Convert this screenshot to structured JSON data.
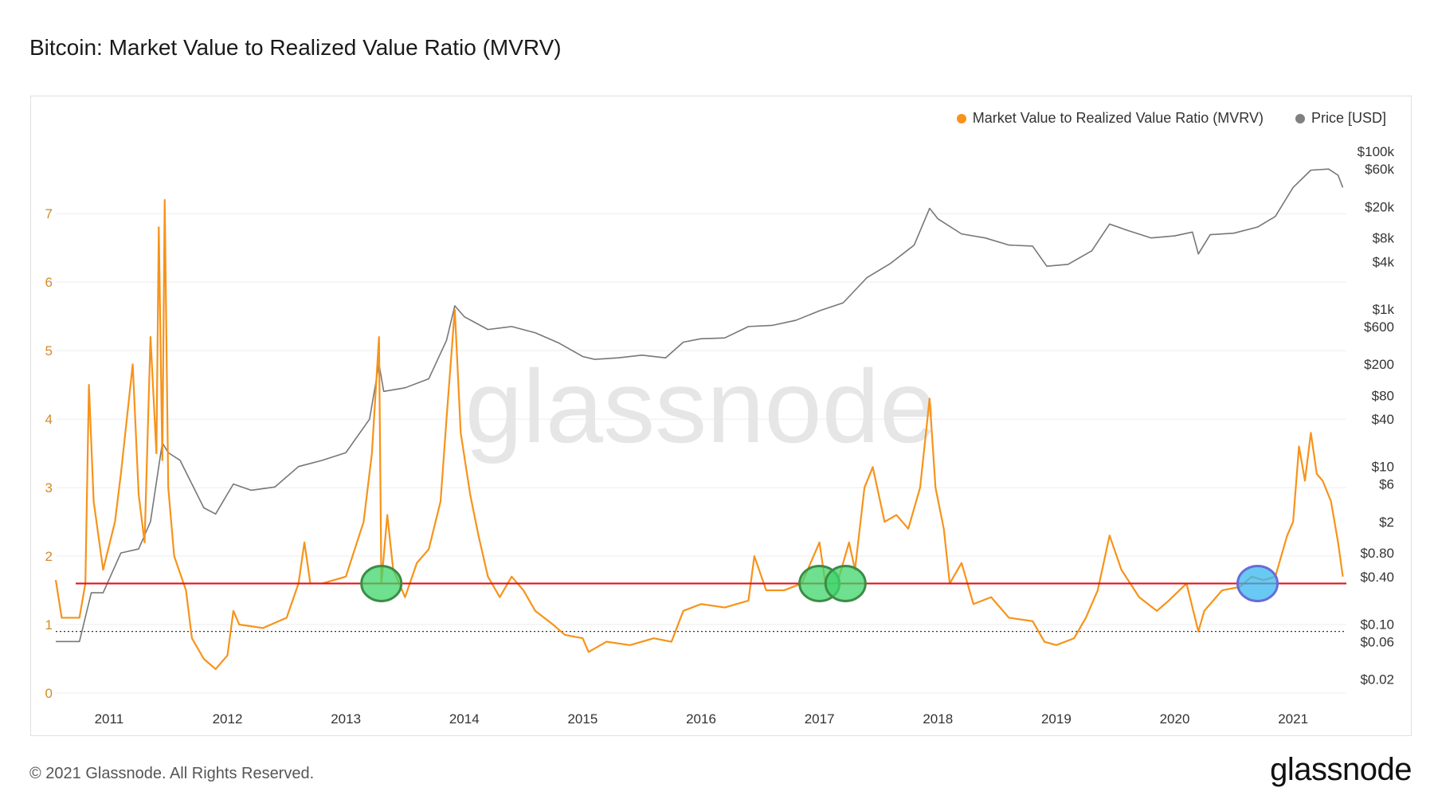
{
  "title": "Bitcoin: Market Value to Realized Value Ratio (MVRV)",
  "footer": "© 2021 Glassnode. All Rights Reserved.",
  "brand": "glassnode",
  "watermark": "glassnode",
  "legend": [
    {
      "label": "Market Value to Realized Value Ratio (MVRV)",
      "color": "#f7931a"
    },
    {
      "label": "Price [USD]",
      "color": "#808080"
    }
  ],
  "colors": {
    "mvrv": "#f7931a",
    "price": "#777777",
    "threshold": "#e0141e",
    "reference": "#333333",
    "green_marker": "#3fd46b",
    "blue_marker": "#35b8f0"
  },
  "chart_data": {
    "type": "line",
    "x_ticks": [
      "2011",
      "2012",
      "2013",
      "2014",
      "2015",
      "2016",
      "2017",
      "2018",
      "2019",
      "2020",
      "2021"
    ],
    "x_range": [
      2010.55,
      2021.45
    ],
    "left_axis": {
      "ticks": [
        "0",
        "1",
        "2",
        "3",
        "4",
        "5",
        "6",
        "7"
      ],
      "range": [
        0,
        8.2
      ]
    },
    "right_axis": {
      "ticks": [
        "$100k",
        "$60k",
        "$20k",
        "$8k",
        "$4k",
        "$1k",
        "$600",
        "$200",
        "$80",
        "$40",
        "$10",
        "$6",
        "$2",
        "$0.80",
        "$0.40",
        "$0.10",
        "$0.06",
        "$0.02"
      ],
      "range": [
        0.0133,
        180000
      ]
    },
    "threshold_line": 1.6,
    "reference_line": 0.9,
    "markers": [
      {
        "x": 2013.3,
        "y": 1.6,
        "color": "green"
      },
      {
        "x": 2017.0,
        "y": 1.6,
        "color": "green"
      },
      {
        "x": 2017.22,
        "y": 1.6,
        "color": "green"
      },
      {
        "x": 2020.7,
        "y": 1.6,
        "color": "blue"
      }
    ],
    "series": [
      {
        "name": "Market Value to Realized Value Ratio (MVRV)",
        "axis": "left",
        "points": [
          [
            2010.55,
            1.65
          ],
          [
            2010.6,
            1.1
          ],
          [
            2010.75,
            1.1
          ],
          [
            2010.8,
            1.6
          ],
          [
            2010.83,
            4.5
          ],
          [
            2010.87,
            2.8
          ],
          [
            2010.95,
            1.8
          ],
          [
            2011.05,
            2.5
          ],
          [
            2011.1,
            3.2
          ],
          [
            2011.2,
            4.8
          ],
          [
            2011.25,
            2.9
          ],
          [
            2011.3,
            2.2
          ],
          [
            2011.35,
            5.2
          ],
          [
            2011.4,
            3.5
          ],
          [
            2011.42,
            6.8
          ],
          [
            2011.45,
            3.4
          ],
          [
            2011.47,
            7.2
          ],
          [
            2011.5,
            3.0
          ],
          [
            2011.55,
            2.0
          ],
          [
            2011.65,
            1.5
          ],
          [
            2011.7,
            0.8
          ],
          [
            2011.8,
            0.5
          ],
          [
            2011.9,
            0.35
          ],
          [
            2011.95,
            0.45
          ],
          [
            2012.0,
            0.55
          ],
          [
            2012.05,
            1.2
          ],
          [
            2012.1,
            1.0
          ],
          [
            2012.3,
            0.95
          ],
          [
            2012.5,
            1.1
          ],
          [
            2012.6,
            1.6
          ],
          [
            2012.65,
            2.2
          ],
          [
            2012.7,
            1.6
          ],
          [
            2012.8,
            1.6
          ],
          [
            2013.0,
            1.7
          ],
          [
            2013.15,
            2.5
          ],
          [
            2013.22,
            3.5
          ],
          [
            2013.28,
            5.2
          ],
          [
            2013.3,
            1.6
          ],
          [
            2013.35,
            2.6
          ],
          [
            2013.4,
            1.8
          ],
          [
            2013.5,
            1.4
          ],
          [
            2013.6,
            1.9
          ],
          [
            2013.7,
            2.1
          ],
          [
            2013.8,
            2.8
          ],
          [
            2013.85,
            4.0
          ],
          [
            2013.92,
            5.6
          ],
          [
            2013.97,
            3.8
          ],
          [
            2014.05,
            2.9
          ],
          [
            2014.12,
            2.3
          ],
          [
            2014.2,
            1.7
          ],
          [
            2014.3,
            1.4
          ],
          [
            2014.4,
            1.7
          ],
          [
            2014.5,
            1.5
          ],
          [
            2014.6,
            1.2
          ],
          [
            2014.75,
            1.0
          ],
          [
            2014.85,
            0.85
          ],
          [
            2015.0,
            0.8
          ],
          [
            2015.05,
            0.6
          ],
          [
            2015.2,
            0.75
          ],
          [
            2015.4,
            0.7
          ],
          [
            2015.6,
            0.8
          ],
          [
            2015.75,
            0.75
          ],
          [
            2015.85,
            1.2
          ],
          [
            2016.0,
            1.3
          ],
          [
            2016.2,
            1.25
          ],
          [
            2016.4,
            1.35
          ],
          [
            2016.45,
            2.0
          ],
          [
            2016.55,
            1.5
          ],
          [
            2016.7,
            1.5
          ],
          [
            2016.85,
            1.6
          ],
          [
            2016.95,
            2.0
          ],
          [
            2017.0,
            2.2
          ],
          [
            2017.05,
            1.6
          ],
          [
            2017.15,
            1.6
          ],
          [
            2017.25,
            2.2
          ],
          [
            2017.3,
            1.8
          ],
          [
            2017.38,
            3.0
          ],
          [
            2017.45,
            3.3
          ],
          [
            2017.55,
            2.5
          ],
          [
            2017.65,
            2.6
          ],
          [
            2017.75,
            2.4
          ],
          [
            2017.85,
            3.0
          ],
          [
            2017.93,
            4.3
          ],
          [
            2017.98,
            3.0
          ],
          [
            2018.05,
            2.4
          ],
          [
            2018.1,
            1.6
          ],
          [
            2018.2,
            1.9
          ],
          [
            2018.3,
            1.3
          ],
          [
            2018.45,
            1.4
          ],
          [
            2018.6,
            1.1
          ],
          [
            2018.8,
            1.05
          ],
          [
            2018.9,
            0.75
          ],
          [
            2019.0,
            0.7
          ],
          [
            2019.15,
            0.8
          ],
          [
            2019.25,
            1.1
          ],
          [
            2019.35,
            1.5
          ],
          [
            2019.45,
            2.3
          ],
          [
            2019.55,
            1.8
          ],
          [
            2019.7,
            1.4
          ],
          [
            2019.85,
            1.2
          ],
          [
            2019.95,
            1.35
          ],
          [
            2020.1,
            1.6
          ],
          [
            2020.2,
            0.9
          ],
          [
            2020.25,
            1.2
          ],
          [
            2020.4,
            1.5
          ],
          [
            2020.55,
            1.55
          ],
          [
            2020.65,
            1.7
          ],
          [
            2020.75,
            1.65
          ],
          [
            2020.85,
            1.7
          ],
          [
            2020.95,
            2.3
          ],
          [
            2021.0,
            2.5
          ],
          [
            2021.05,
            3.6
          ],
          [
            2021.1,
            3.1
          ],
          [
            2021.15,
            3.8
          ],
          [
            2021.2,
            3.2
          ],
          [
            2021.25,
            3.1
          ],
          [
            2021.32,
            2.8
          ],
          [
            2021.38,
            2.2
          ],
          [
            2021.42,
            1.7
          ]
        ]
      },
      {
        "name": "Price [USD]",
        "axis": "right",
        "points": [
          [
            2010.55,
            0.06
          ],
          [
            2010.75,
            0.06
          ],
          [
            2010.85,
            0.25
          ],
          [
            2010.95,
            0.25
          ],
          [
            2011.1,
            0.8
          ],
          [
            2011.25,
            0.9
          ],
          [
            2011.35,
            2
          ],
          [
            2011.45,
            20
          ],
          [
            2011.5,
            15
          ],
          [
            2011.6,
            12
          ],
          [
            2011.8,
            3
          ],
          [
            2011.9,
            2.5
          ],
          [
            2012.05,
            6
          ],
          [
            2012.2,
            5
          ],
          [
            2012.4,
            5.5
          ],
          [
            2012.6,
            10
          ],
          [
            2012.8,
            12
          ],
          [
            2013.0,
            15
          ],
          [
            2013.2,
            40
          ],
          [
            2013.28,
            200
          ],
          [
            2013.32,
            90
          ],
          [
            2013.5,
            100
          ],
          [
            2013.7,
            130
          ],
          [
            2013.85,
            400
          ],
          [
            2013.92,
            1100
          ],
          [
            2014.0,
            800
          ],
          [
            2014.2,
            550
          ],
          [
            2014.4,
            600
          ],
          [
            2014.6,
            500
          ],
          [
            2014.8,
            370
          ],
          [
            2015.0,
            250
          ],
          [
            2015.1,
            230
          ],
          [
            2015.3,
            240
          ],
          [
            2015.5,
            260
          ],
          [
            2015.7,
            240
          ],
          [
            2015.85,
            380
          ],
          [
            2016.0,
            420
          ],
          [
            2016.2,
            430
          ],
          [
            2016.4,
            600
          ],
          [
            2016.6,
            620
          ],
          [
            2016.8,
            720
          ],
          [
            2017.0,
            950
          ],
          [
            2017.2,
            1200
          ],
          [
            2017.4,
            2500
          ],
          [
            2017.6,
            3800
          ],
          [
            2017.8,
            6500
          ],
          [
            2017.93,
            19000
          ],
          [
            2018.0,
            14000
          ],
          [
            2018.2,
            9000
          ],
          [
            2018.4,
            8000
          ],
          [
            2018.6,
            6500
          ],
          [
            2018.8,
            6300
          ],
          [
            2018.92,
            3500
          ],
          [
            2019.1,
            3700
          ],
          [
            2019.3,
            5500
          ],
          [
            2019.45,
            12000
          ],
          [
            2019.6,
            10000
          ],
          [
            2019.8,
            8000
          ],
          [
            2020.0,
            8500
          ],
          [
            2020.15,
            9500
          ],
          [
            2020.2,
            5000
          ],
          [
            2020.3,
            8800
          ],
          [
            2020.5,
            9200
          ],
          [
            2020.7,
            11000
          ],
          [
            2020.85,
            15000
          ],
          [
            2021.0,
            35000
          ],
          [
            2021.15,
            58000
          ],
          [
            2021.3,
            60000
          ],
          [
            2021.38,
            50000
          ],
          [
            2021.42,
            35000
          ]
        ]
      }
    ]
  }
}
